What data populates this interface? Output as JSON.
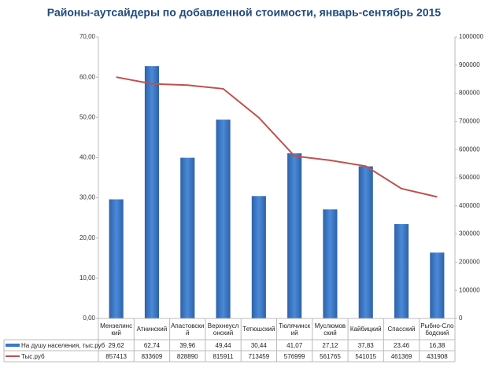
{
  "chart_data": {
    "type": "bar_line_table",
    "title": "Районы-аутсайдеры  по добавленной  стоимости, январь-сентябрь  2015",
    "categories": [
      "Мензелинский",
      "Атнинский",
      "Апастовский",
      "Верхнеуслонский",
      "Тетюшский",
      "Тюлячинский",
      "Муслюмовский",
      "Кайбицкий",
      "Спасский",
      "Рыбно-Слободский"
    ],
    "series": [
      {
        "name": "На душу населения, тыс.руб",
        "color": "#3a78c9",
        "kind": "bar",
        "values": [
          29.62,
          62.74,
          39.96,
          49.44,
          30.44,
          41.07,
          27.12,
          37.83,
          23.46,
          16.38
        ],
        "value_labels": [
          "29,62",
          "62,74",
          "39,96",
          "49,44",
          "30,44",
          "41,07",
          "27,12",
          "37,83",
          "23,46",
          "16,38"
        ]
      },
      {
        "name": "Тыс.руб",
        "color": "#c0504d",
        "kind": "line",
        "axis": "y2",
        "values": [
          857413,
          833609,
          828890,
          815911,
          713459,
          576999,
          561765,
          541015,
          461369,
          431908
        ]
      }
    ],
    "ylim": [
      0,
      70
    ],
    "yticks": [
      {
        "value": 0,
        "label": "0,00"
      },
      {
        "value": 10,
        "label": "10,00"
      },
      {
        "value": 20,
        "label": "20,00"
      },
      {
        "value": 30,
        "label": "30,00"
      },
      {
        "value": 40,
        "label": "40,00"
      },
      {
        "value": 50,
        "label": "50,00"
      },
      {
        "value": 60,
        "label": "60,00"
      },
      {
        "value": 70,
        "label": "70,00"
      }
    ],
    "y2lim": [
      0,
      1000000
    ],
    "y2ticks": [
      0,
      100000,
      200000,
      300000,
      400000,
      500000,
      600000,
      700000,
      800000,
      900000,
      1000000
    ]
  }
}
